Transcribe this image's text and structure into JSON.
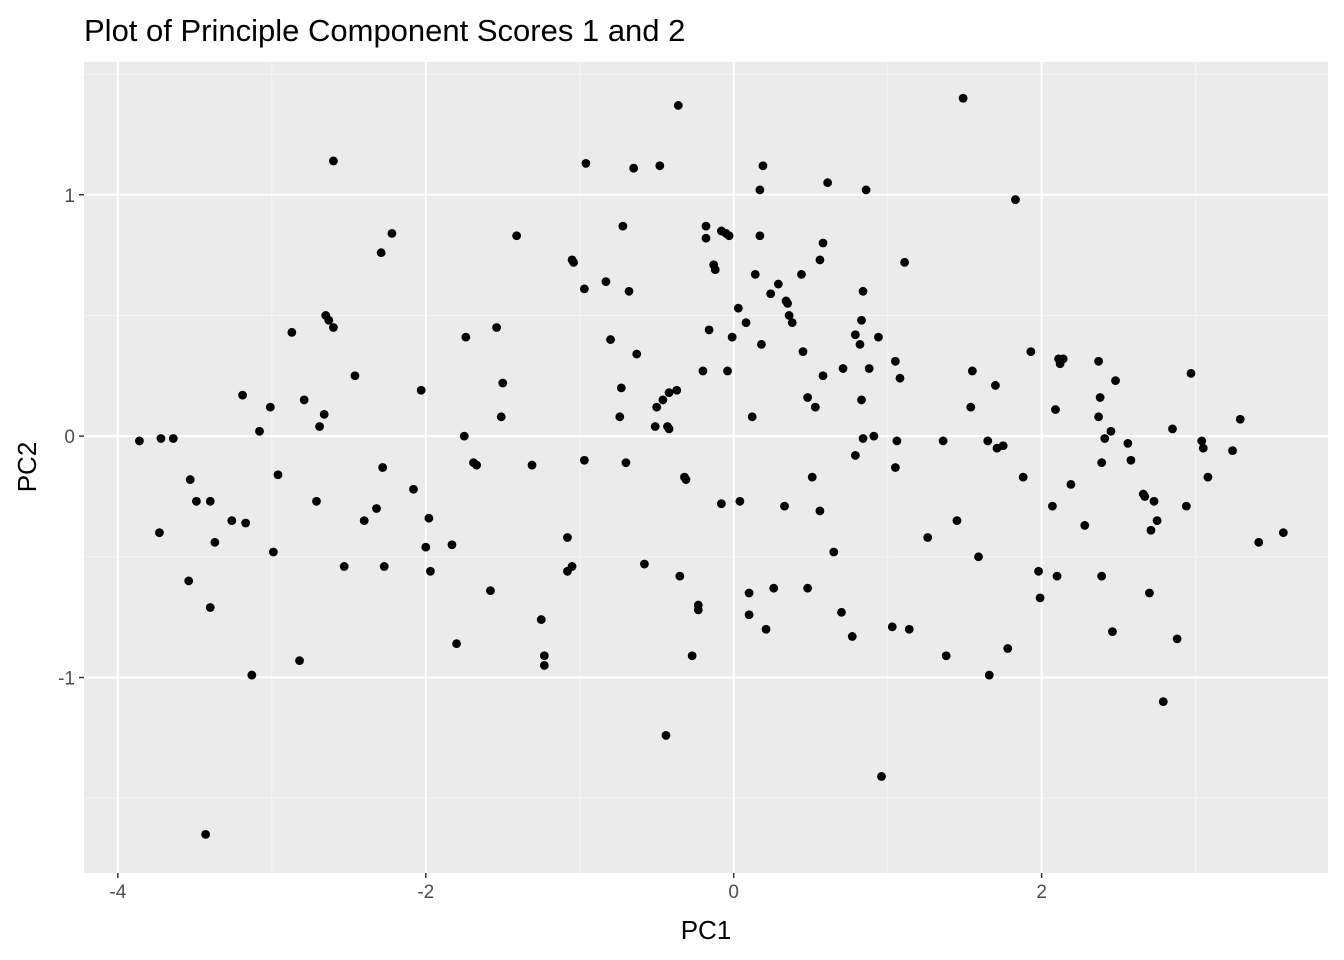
{
  "colors": {
    "panel_background": "#ebebeb",
    "grid_major": "#ffffff",
    "grid_minor": "#f5f5f5",
    "points": "#000000",
    "tick_labels": "#4d4d4d",
    "ticks": "#333333"
  },
  "chart_data": {
    "type": "scatter",
    "title": "Plot of Principle Component Scores 1 and 2",
    "xlabel": "PC1",
    "ylabel": "PC2",
    "xlim": [
      -4.22,
      3.86
    ],
    "ylim": [
      -1.81,
      1.55
    ],
    "x_ticks": [
      {
        "value": -4,
        "label": "-4"
      },
      {
        "value": -2,
        "label": "-2"
      },
      {
        "value": 0,
        "label": "0"
      },
      {
        "value": 2,
        "label": "2"
      }
    ],
    "y_ticks": [
      {
        "value": -1,
        "label": "-1"
      },
      {
        "value": 0,
        "label": "0"
      },
      {
        "value": 1,
        "label": "1"
      }
    ],
    "x_minor": [
      -3,
      -1,
      1,
      3
    ],
    "y_minor": [
      -1.5,
      -0.5,
      0.5,
      1.5
    ],
    "grid": true,
    "legend": "none",
    "points": [
      [
        -3.86,
        -0.02
      ],
      [
        -3.73,
        -0.4
      ],
      [
        -3.72,
        -0.01
      ],
      [
        -3.64,
        -0.01
      ],
      [
        -3.53,
        -0.18
      ],
      [
        -3.54,
        -0.6
      ],
      [
        -3.49,
        -0.27
      ],
      [
        -3.4,
        -0.27
      ],
      [
        -3.37,
        -0.44
      ],
      [
        -3.4,
        -0.71
      ],
      [
        -3.43,
        -1.65
      ],
      [
        -3.26,
        -0.35
      ],
      [
        -3.17,
        -0.36
      ],
      [
        -3.13,
        -0.99
      ],
      [
        -3.08,
        0.02
      ],
      [
        -3.19,
        0.17
      ],
      [
        -3.01,
        0.12
      ],
      [
        -2.99,
        -0.48
      ],
      [
        -2.96,
        -0.16
      ],
      [
        -2.87,
        0.43
      ],
      [
        -2.82,
        -0.93
      ],
      [
        -2.79,
        0.15
      ],
      [
        -2.71,
        -0.27
      ],
      [
        -2.69,
        0.04
      ],
      [
        -2.66,
        0.09
      ],
      [
        -2.65,
        0.5
      ],
      [
        -2.63,
        0.48
      ],
      [
        -2.6,
        0.45
      ],
      [
        -2.6,
        1.14
      ],
      [
        -2.53,
        -0.54
      ],
      [
        -2.46,
        0.25
      ],
      [
        -2.4,
        -0.35
      ],
      [
        -2.32,
        -0.3
      ],
      [
        -2.29,
        0.76
      ],
      [
        -2.28,
        -0.13
      ],
      [
        -2.27,
        -0.54
      ],
      [
        -2.22,
        0.84
      ],
      [
        -2.08,
        -0.22
      ],
      [
        -2.03,
        0.19
      ],
      [
        -2.0,
        -0.46
      ],
      [
        -1.98,
        -0.34
      ],
      [
        -1.97,
        -0.56
      ],
      [
        -1.83,
        -0.45
      ],
      [
        -1.8,
        -0.86
      ],
      [
        -1.75,
        0.0
      ],
      [
        -1.74,
        0.41
      ],
      [
        -1.69,
        -0.11
      ],
      [
        -1.67,
        -0.12
      ],
      [
        -1.58,
        -0.64
      ],
      [
        -1.54,
        0.45
      ],
      [
        -1.51,
        0.08
      ],
      [
        -1.5,
        0.22
      ],
      [
        -1.41,
        0.83
      ],
      [
        -1.31,
        -0.12
      ],
      [
        -1.25,
        -0.76
      ],
      [
        -1.23,
        -0.91
      ],
      [
        -1.23,
        -0.95
      ],
      [
        -1.08,
        -0.42
      ],
      [
        -1.08,
        -0.56
      ],
      [
        -1.05,
        -0.54
      ],
      [
        -1.05,
        0.73
      ],
      [
        -1.04,
        0.72
      ],
      [
        -0.97,
        0.61
      ],
      [
        -0.96,
        1.13
      ],
      [
        -0.97,
        -0.1
      ],
      [
        -0.83,
        0.64
      ],
      [
        -0.8,
        0.4
      ],
      [
        -0.74,
        0.08
      ],
      [
        -0.73,
        0.2
      ],
      [
        -0.72,
        0.87
      ],
      [
        -0.7,
        -0.11
      ],
      [
        -0.68,
        0.6
      ],
      [
        -0.65,
        1.11
      ],
      [
        -0.63,
        0.34
      ],
      [
        -0.58,
        -0.53
      ],
      [
        -0.51,
        0.04
      ],
      [
        -0.5,
        0.12
      ],
      [
        -0.48,
        1.12
      ],
      [
        -0.46,
        0.15
      ],
      [
        -0.43,
        0.04
      ],
      [
        -0.42,
        0.03
      ],
      [
        -0.44,
        -1.24
      ],
      [
        -0.42,
        0.18
      ],
      [
        -0.37,
        0.19
      ],
      [
        -0.36,
        1.37
      ],
      [
        -0.35,
        -0.58
      ],
      [
        -0.32,
        -0.17
      ],
      [
        -0.31,
        -0.18
      ],
      [
        -0.27,
        -0.91
      ],
      [
        -0.23,
        -0.7
      ],
      [
        -0.23,
        -0.72
      ],
      [
        -0.2,
        0.27
      ],
      [
        -0.18,
        0.87
      ],
      [
        -0.18,
        0.82
      ],
      [
        -0.16,
        0.44
      ],
      [
        -0.13,
        0.71
      ],
      [
        -0.12,
        0.69
      ],
      [
        -0.08,
        -0.28
      ],
      [
        -0.08,
        0.85
      ],
      [
        -0.05,
        0.84
      ],
      [
        -0.03,
        0.83
      ],
      [
        -0.04,
        0.27
      ],
      [
        -0.01,
        0.41
      ],
      [
        0.03,
        0.53
      ],
      [
        0.04,
        -0.27
      ],
      [
        0.08,
        0.47
      ],
      [
        0.1,
        -0.65
      ],
      [
        0.1,
        -0.74
      ],
      [
        0.12,
        0.08
      ],
      [
        0.14,
        0.67
      ],
      [
        0.17,
        0.83
      ],
      [
        0.17,
        1.02
      ],
      [
        0.18,
        0.38
      ],
      [
        0.19,
        1.12
      ],
      [
        0.21,
        -0.8
      ],
      [
        0.24,
        0.59
      ],
      [
        0.26,
        -0.63
      ],
      [
        0.29,
        0.63
      ],
      [
        0.33,
        -0.29
      ],
      [
        0.34,
        0.56
      ],
      [
        0.35,
        0.55
      ],
      [
        0.36,
        0.5
      ],
      [
        0.38,
        0.47
      ],
      [
        0.44,
        0.67
      ],
      [
        0.45,
        0.35
      ],
      [
        0.48,
        -0.63
      ],
      [
        0.48,
        0.16
      ],
      [
        0.51,
        -0.17
      ],
      [
        0.53,
        0.12
      ],
      [
        0.56,
        -0.31
      ],
      [
        0.56,
        0.73
      ],
      [
        0.58,
        0.8
      ],
      [
        0.58,
        0.25
      ],
      [
        0.61,
        1.05
      ],
      [
        0.65,
        -0.48
      ],
      [
        0.7,
        -0.73
      ],
      [
        0.71,
        0.28
      ],
      [
        0.77,
        -0.83
      ],
      [
        0.79,
        -0.08
      ],
      [
        0.79,
        0.42
      ],
      [
        0.82,
        0.38
      ],
      [
        0.83,
        0.15
      ],
      [
        0.83,
        0.48
      ],
      [
        0.84,
        0.6
      ],
      [
        0.84,
        -0.01
      ],
      [
        0.86,
        1.02
      ],
      [
        0.88,
        0.28
      ],
      [
        0.91,
        0.0
      ],
      [
        0.94,
        0.41
      ],
      [
        0.96,
        -1.41
      ],
      [
        1.03,
        -0.79
      ],
      [
        1.05,
        0.31
      ],
      [
        1.05,
        -0.13
      ],
      [
        1.06,
        -0.02
      ],
      [
        1.08,
        0.24
      ],
      [
        1.11,
        0.72
      ],
      [
        1.14,
        -0.8
      ],
      [
        1.26,
        -0.42
      ],
      [
        1.36,
        -0.02
      ],
      [
        1.38,
        -0.91
      ],
      [
        1.45,
        -0.35
      ],
      [
        1.49,
        1.4
      ],
      [
        1.54,
        0.12
      ],
      [
        1.55,
        0.27
      ],
      [
        1.59,
        -0.5
      ],
      [
        1.65,
        -0.02
      ],
      [
        1.66,
        -0.99
      ],
      [
        1.7,
        0.21
      ],
      [
        1.71,
        -0.05
      ],
      [
        1.75,
        -0.04
      ],
      [
        1.78,
        -0.88
      ],
      [
        1.83,
        0.98
      ],
      [
        1.88,
        -0.17
      ],
      [
        1.93,
        0.35
      ],
      [
        1.98,
        -0.56
      ],
      [
        1.99,
        -0.67
      ],
      [
        2.07,
        -0.29
      ],
      [
        2.09,
        0.11
      ],
      [
        2.1,
        -0.58
      ],
      [
        2.11,
        0.32
      ],
      [
        2.12,
        0.3
      ],
      [
        2.14,
        0.32
      ],
      [
        2.19,
        -0.2
      ],
      [
        2.28,
        -0.37
      ],
      [
        2.37,
        0.08
      ],
      [
        2.37,
        0.31
      ],
      [
        2.38,
        0.16
      ],
      [
        2.39,
        -0.11
      ],
      [
        2.39,
        -0.58
      ],
      [
        2.41,
        -0.01
      ],
      [
        2.45,
        0.02
      ],
      [
        2.46,
        -0.81
      ],
      [
        2.48,
        0.23
      ],
      [
        2.56,
        -0.03
      ],
      [
        2.58,
        -0.1
      ],
      [
        2.66,
        -0.24
      ],
      [
        2.67,
        -0.25
      ],
      [
        2.7,
        -0.65
      ],
      [
        2.71,
        -0.39
      ],
      [
        2.73,
        -0.27
      ],
      [
        2.75,
        -0.35
      ],
      [
        2.79,
        -1.1
      ],
      [
        2.85,
        0.03
      ],
      [
        2.88,
        -0.84
      ],
      [
        2.94,
        -0.29
      ],
      [
        2.97,
        0.26
      ],
      [
        3.04,
        -0.02
      ],
      [
        3.05,
        -0.05
      ],
      [
        3.08,
        -0.17
      ],
      [
        3.24,
        -0.06
      ],
      [
        3.29,
        0.07
      ],
      [
        3.41,
        -0.44
      ],
      [
        3.57,
        -0.4
      ]
    ]
  }
}
